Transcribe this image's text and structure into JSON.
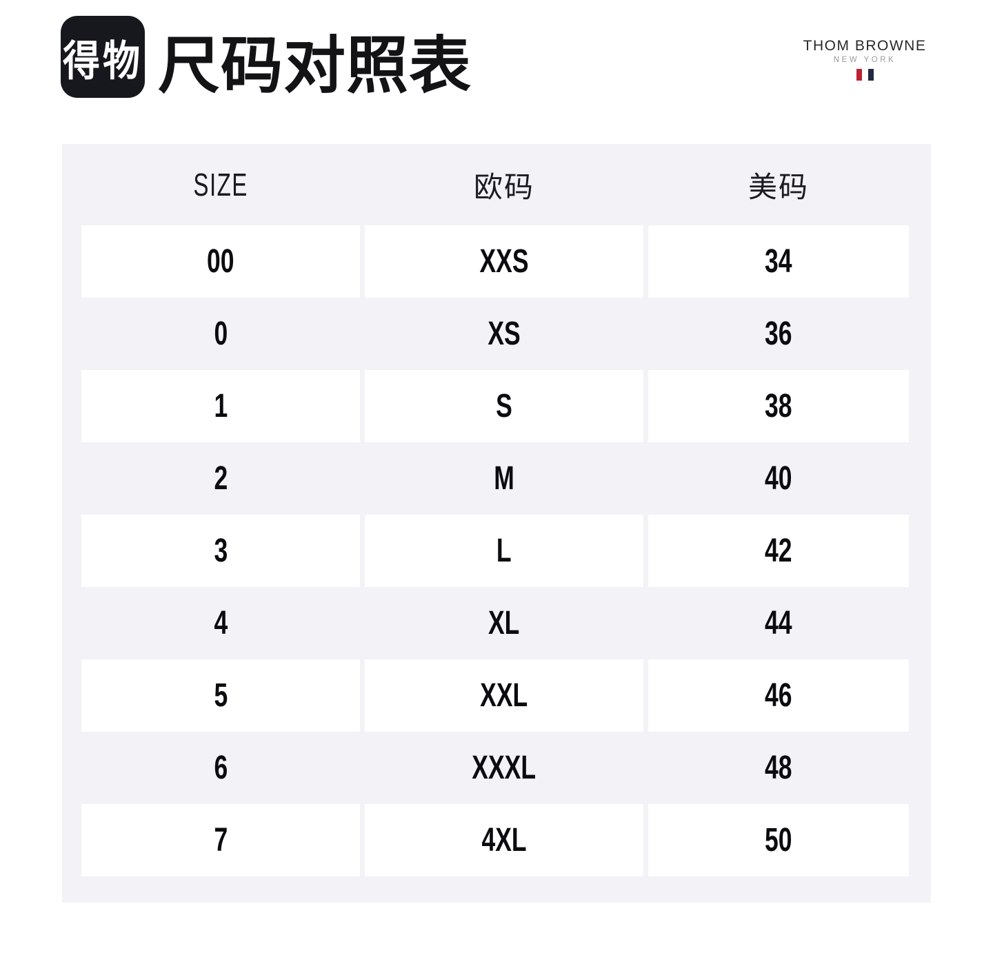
{
  "header": {
    "app_logo_text": "得物",
    "title": "尺码对照表",
    "brand_name": "THOM BROWNE",
    "brand_subtitle": "NEW YORK"
  },
  "chart_data": {
    "type": "table",
    "title": "尺码对照表",
    "columns": [
      "SIZE",
      "欧码",
      "美码"
    ],
    "rows": [
      [
        "00",
        "XXS",
        "34"
      ],
      [
        "0",
        "XS",
        "36"
      ],
      [
        "1",
        "S",
        "38"
      ],
      [
        "2",
        "M",
        "40"
      ],
      [
        "3",
        "L",
        "42"
      ],
      [
        "4",
        "XL",
        "44"
      ],
      [
        "5",
        "XXL",
        "46"
      ],
      [
        "6",
        "XXXL",
        "48"
      ],
      [
        "7",
        "4XL",
        "50"
      ]
    ],
    "layout": {
      "row_striping": "odd rows white on light-gray panel",
      "alignment": "center"
    }
  },
  "colors": {
    "page_bg": "#ffffff",
    "panel_bg": "#f2f2f7",
    "cell_bg": "#ffffff",
    "text": "#0c0c10",
    "logo_bg": "#17181d",
    "brand_bar_red": "#bb2231",
    "brand_bar_navy": "#222744",
    "brand_subtitle_gray": "#9b9b9b"
  }
}
